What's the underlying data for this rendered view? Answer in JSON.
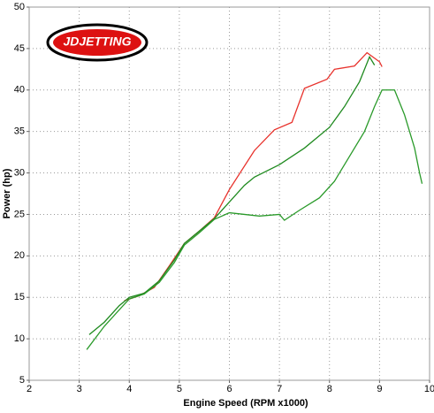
{
  "chart_data": {
    "type": "line",
    "logo": "JDJETTING",
    "x_label": "Engine Speed (RPM x1000)",
    "y_label": "Power (hp)",
    "xlim": [
      2,
      10
    ],
    "xticks": [
      2,
      3,
      4,
      5,
      6,
      7,
      8,
      9,
      10
    ],
    "ylim": [
      5,
      50
    ],
    "yticks": [
      5,
      10,
      15,
      20,
      25,
      30,
      35,
      40,
      45,
      50
    ],
    "grid": true,
    "series": [
      {
        "color": "#e8322c",
        "x": [
          3.9,
          4.2,
          4.5,
          4.8,
          5.1,
          5.4,
          5.7,
          6.0,
          6.5,
          6.9,
          7.25,
          7.5,
          7.95,
          8.1,
          8.5,
          8.75,
          9.0,
          9.05
        ],
        "values": [
          14.6,
          15.2,
          16.2,
          18.8,
          21.5,
          23.0,
          24.6,
          28.0,
          32.7,
          35.2,
          36.1,
          40.2,
          41.3,
          42.5,
          42.9,
          44.5,
          43.4,
          42.8
        ]
      },
      {
        "color": "#1f8a1f",
        "x": [
          3.2,
          3.5,
          3.8,
          4.0,
          4.3,
          4.6,
          4.9,
          5.1,
          5.4,
          5.7,
          6.0,
          6.3,
          6.5,
          7.0,
          7.5,
          8.0,
          8.3,
          8.6,
          8.8,
          8.9
        ],
        "values": [
          10.5,
          12.0,
          14.0,
          15.0,
          15.5,
          17.0,
          19.5,
          21.5,
          23.0,
          24.5,
          26.5,
          28.5,
          29.5,
          31.0,
          33.0,
          35.5,
          38.0,
          41.0,
          44.0,
          43.0
        ]
      },
      {
        "color": "#2a9a2a",
        "x": [
          3.15,
          3.5,
          3.8,
          4.0,
          4.3,
          4.6,
          4.9,
          5.1,
          5.4,
          5.7,
          6.0,
          6.3,
          6.6,
          7.0,
          7.1,
          7.4,
          7.8,
          8.1,
          8.4,
          8.7,
          8.9,
          9.05,
          9.3,
          9.5,
          9.7,
          9.8,
          9.85
        ],
        "values": [
          8.7,
          11.5,
          13.5,
          14.8,
          15.4,
          16.8,
          19.2,
          21.3,
          22.8,
          24.4,
          25.2,
          25.0,
          24.8,
          25.0,
          24.3,
          25.5,
          27.0,
          29.0,
          32.0,
          35.0,
          38.0,
          40.0,
          40.0,
          37.0,
          33.0,
          30.0,
          28.7
        ]
      }
    ]
  }
}
